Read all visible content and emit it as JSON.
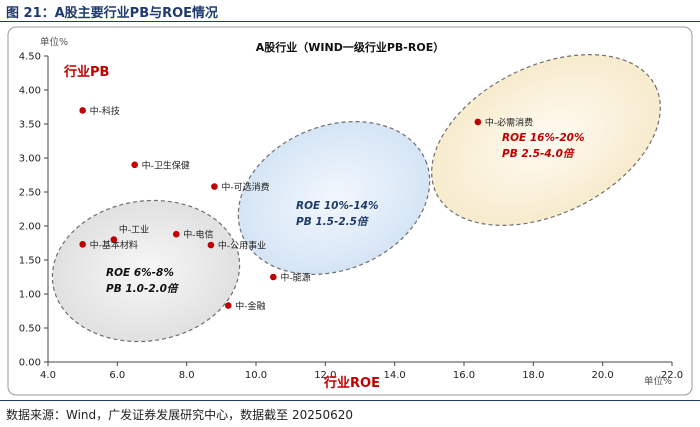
{
  "figure": {
    "title": "图 21：A股主要行业PB与ROE情况",
    "source": "数据来源：Wind，广发证券发展研究中心，数据截至 20250620"
  },
  "chart_data": {
    "type": "scatter",
    "title": "A股行业（WIND一级行业PB-ROE）",
    "xlabel": "行业ROE",
    "ylabel": "行业PB",
    "x_unit": "单位%",
    "y_unit": "单位%",
    "xlim": [
      4.0,
      22.0
    ],
    "ylim": [
      0.0,
      4.5
    ],
    "x_ticks": [
      "4.0",
      "6.0",
      "8.0",
      "10.0",
      "12.0",
      "14.0",
      "16.0",
      "18.0",
      "20.0",
      "22.0"
    ],
    "y_ticks": [
      "0.00",
      "0.50",
      "1.00",
      "1.50",
      "2.00",
      "2.50",
      "3.00",
      "3.50",
      "4.00",
      "4.50"
    ],
    "grid": false,
    "point_color": "#c00000",
    "points": [
      {
        "label": "中-科技",
        "x": 5.0,
        "y": 3.7
      },
      {
        "label": "中-卫生保健",
        "x": 6.5,
        "y": 2.9
      },
      {
        "label": "中-可选消费",
        "x": 8.8,
        "y": 2.58
      },
      {
        "label": "中-工业",
        "x": 5.9,
        "y": 1.8
      },
      {
        "label": "中-基本材料",
        "x": 5.0,
        "y": 1.73
      },
      {
        "label": "中-电信",
        "x": 7.7,
        "y": 1.88
      },
      {
        "label": "中-公用事业",
        "x": 8.7,
        "y": 1.72
      },
      {
        "label": "中-能源",
        "x": 10.5,
        "y": 1.25
      },
      {
        "label": "中-金融",
        "x": 9.2,
        "y": 0.83
      },
      {
        "label": "中-必需消费",
        "x": 16.4,
        "y": 3.53
      }
    ],
    "clusters": [
      {
        "line1": "ROE  6%-8%",
        "line2": "PB  1.0-2.0倍",
        "fill": "#ececec",
        "text_color": "#111111"
      },
      {
        "line1": "ROE  10%-14%",
        "line2": "PB  1.5-2.5倍",
        "fill": "#dce9f7",
        "text_color": "#1f3a6b"
      },
      {
        "line1": "ROE  16%-20%",
        "line2": "PB  2.5-4.0倍",
        "fill": "#fbf2dc",
        "text_color": "#c00000"
      }
    ]
  }
}
